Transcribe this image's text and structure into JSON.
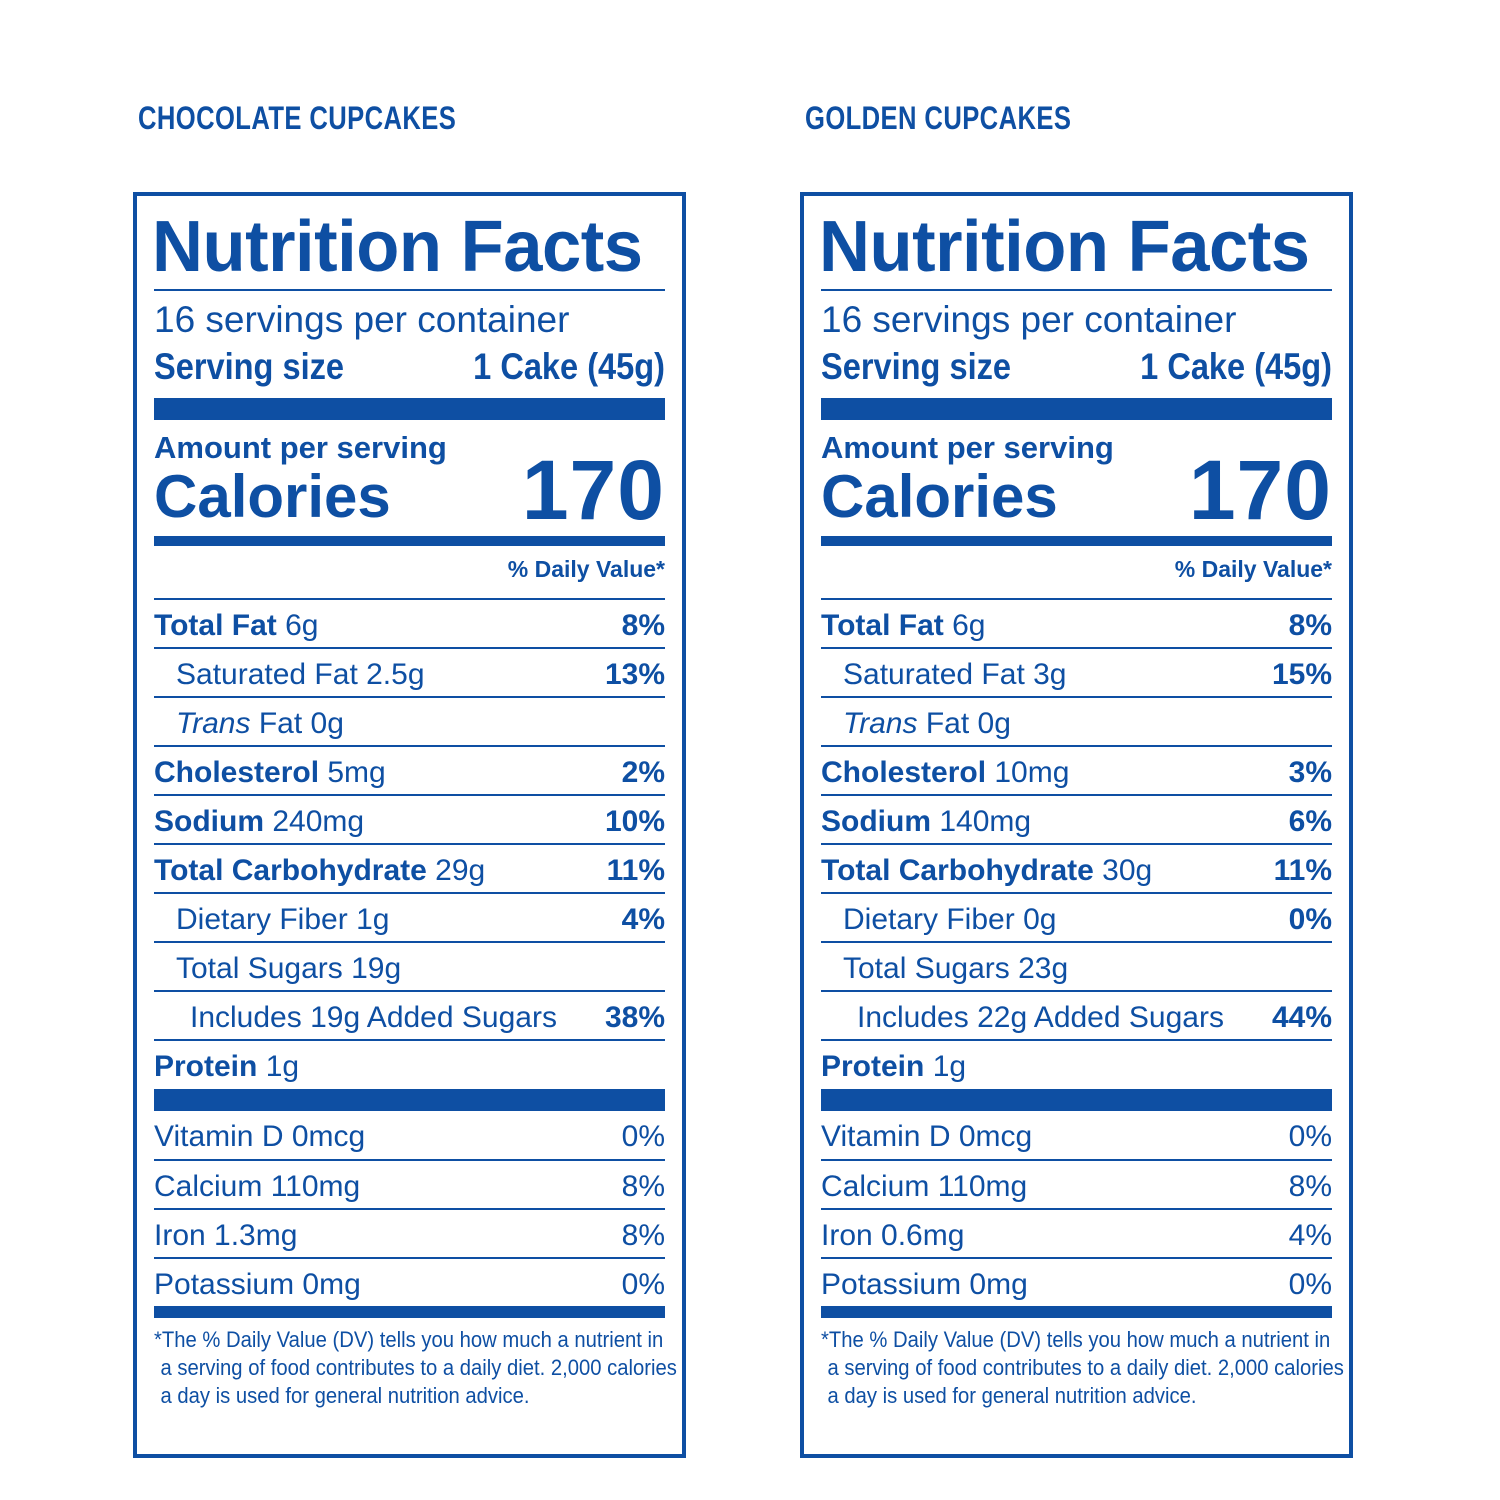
{
  "colors": {
    "brand_blue": "#0e4fa3",
    "background": "#ffffff"
  },
  "panels": [
    {
      "title": "CHOCOLATE CUPCAKES",
      "label_title": "Nutrition Facts",
      "servings_per_container": "16 servings per container",
      "serving_size_label": "Serving size",
      "serving_size_value": "1 Cake (45g)",
      "amount_per_serving": "Amount per serving",
      "calories_label": "Calories",
      "calories_value": "170",
      "daily_value_header": "% Daily Value*",
      "nutrients": [
        {
          "name": "Total Fat",
          "amount": "6g",
          "dv": "8%"
        },
        {
          "name": "Saturated Fat",
          "amount": "2.5g",
          "dv": "13%"
        },
        {
          "name_italic": "Trans",
          "name": "Fat",
          "amount": "0g",
          "dv": ""
        },
        {
          "name": "Cholesterol",
          "amount": "5mg",
          "dv": "2%"
        },
        {
          "name": "Sodium",
          "amount": "240mg",
          "dv": "10%"
        },
        {
          "name": "Total Carbohydrate",
          "amount": "29g",
          "dv": "11%"
        },
        {
          "name": "Dietary Fiber",
          "amount": "1g",
          "dv": "4%"
        },
        {
          "name": "Total Sugars",
          "amount": "19g",
          "dv": ""
        },
        {
          "name": "Includes 19g Added Sugars",
          "amount": "",
          "dv": "38%"
        },
        {
          "name": "Protein",
          "amount": "1g",
          "dv": ""
        }
      ],
      "vitamins": [
        {
          "name": "Vitamin D 0mcg",
          "dv": "0%"
        },
        {
          "name": "Calcium 110mg",
          "dv": "8%"
        },
        {
          "name": "Iron 1.3mg",
          "dv": "8%"
        },
        {
          "name": "Potassium 0mg",
          "dv": "0%"
        }
      ],
      "footnote": [
        "*The % Daily Value (DV) tells you how much a nutrient in",
        "a serving of food contributes to a daily diet. 2,000 calories",
        "a day is used for general nutrition advice."
      ]
    },
    {
      "title": "GOLDEN CUPCAKES",
      "label_title": "Nutrition Facts",
      "servings_per_container": "16 servings per container",
      "serving_size_label": "Serving size",
      "serving_size_value": "1 Cake (45g)",
      "amount_per_serving": "Amount per serving",
      "calories_label": "Calories",
      "calories_value": "170",
      "daily_value_header": "% Daily Value*",
      "nutrients": [
        {
          "name": "Total Fat",
          "amount": "6g",
          "dv": "8%"
        },
        {
          "name": "Saturated Fat",
          "amount": "3g",
          "dv": "15%"
        },
        {
          "name_italic": "Trans",
          "name": "Fat",
          "amount": "0g",
          "dv": ""
        },
        {
          "name": "Cholesterol",
          "amount": "10mg",
          "dv": "3%"
        },
        {
          "name": "Sodium",
          "amount": "140mg",
          "dv": "6%"
        },
        {
          "name": "Total Carbohydrate",
          "amount": "30g",
          "dv": "11%"
        },
        {
          "name": "Dietary Fiber",
          "amount": "0g",
          "dv": "0%"
        },
        {
          "name": "Total Sugars",
          "amount": "23g",
          "dv": ""
        },
        {
          "name": "Includes 22g Added Sugars",
          "amount": "",
          "dv": "44%"
        },
        {
          "name": "Protein",
          "amount": "1g",
          "dv": ""
        }
      ],
      "vitamins": [
        {
          "name": "Vitamin D 0mcg",
          "dv": "0%"
        },
        {
          "name": "Calcium 110mg",
          "dv": "8%"
        },
        {
          "name": "Iron 0.6mg",
          "dv": "4%"
        },
        {
          "name": "Potassium 0mg",
          "dv": "0%"
        }
      ],
      "footnote": [
        "*The % Daily Value (DV) tells you how much a nutrient in",
        "a serving of food contributes to a daily diet. 2,000 calories",
        "a day is used for general nutrition advice."
      ]
    }
  ]
}
